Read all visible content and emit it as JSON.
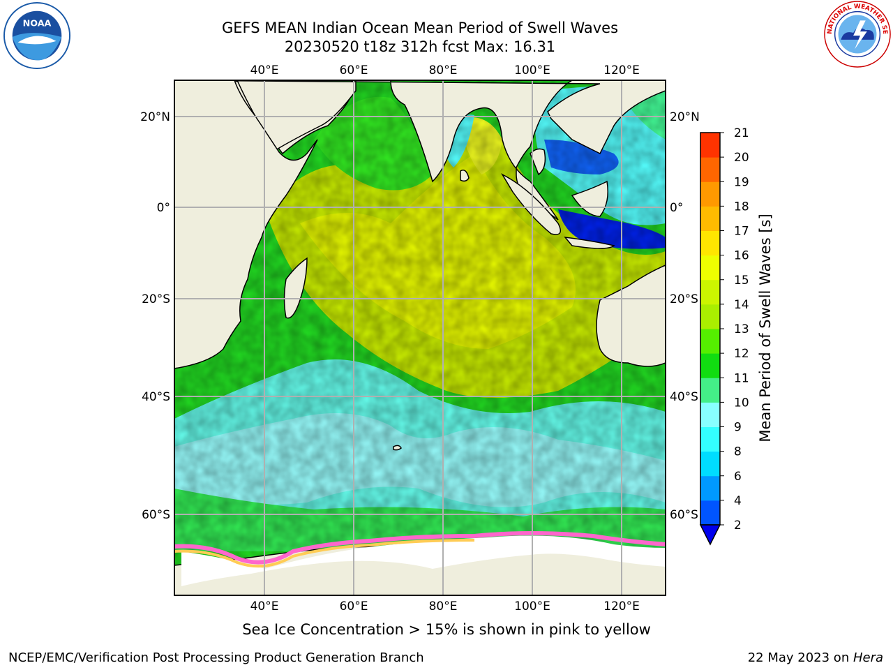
{
  "header": {
    "title_line1": "GEFS MEAN Indian Ocean Mean Period of Swell Waves",
    "title_line2": "20230520 t18z 312h fcst   Max: 16.31"
  },
  "logos": {
    "left": {
      "icon": "noaa-logo",
      "text": "NOAA"
    },
    "right": {
      "icon": "nws-logo",
      "text": "NATIONAL WEATHER SERVICE"
    }
  },
  "map": {
    "lon_ticks": [
      "40°E",
      "60°E",
      "80°E",
      "100°E",
      "120°E"
    ],
    "lat_ticks": [
      "20°N",
      "0°",
      "20°S",
      "40°S",
      "60°S"
    ],
    "land_color": "#efeedd",
    "ice_colors": [
      "#ff66cc",
      "#ffcc55",
      "#ffee88"
    ]
  },
  "colorbar": {
    "label": "Mean Period of Swell Waves [s]",
    "ticks": [
      "2",
      "4",
      "6",
      "8",
      "9",
      "10",
      "11",
      "12",
      "13",
      "14",
      "15",
      "16",
      "17",
      "18",
      "19",
      "20",
      "21"
    ],
    "colors": [
      "#0055ff",
      "#0099ff",
      "#00ddff",
      "#33ffff",
      "#88ffff",
      "#44ee88",
      "#11dd11",
      "#55ee00",
      "#aaee00",
      "#ccf500",
      "#eeff00",
      "#ffe600",
      "#ffbb00",
      "#ff9900",
      "#ff6600",
      "#ff3300"
    ],
    "extend_color": "#0000ee"
  },
  "note": "Sea Ice Concentration > 15% is shown in pink to yellow",
  "footer": {
    "left": "NCEP/EMC/Verification Post Processing Product Generation Branch",
    "right_prefix": "22 May 2023 on ",
    "right_italic": "Hera"
  }
}
